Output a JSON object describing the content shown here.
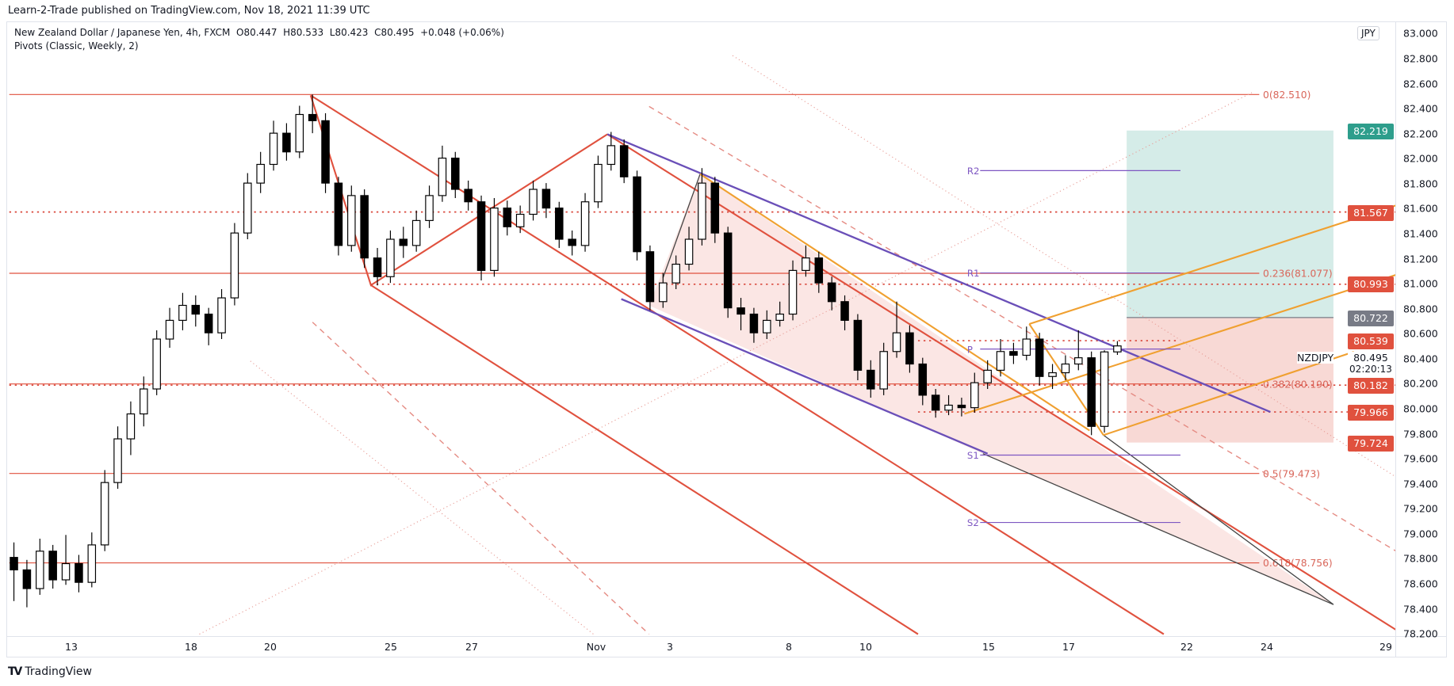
{
  "header": {
    "published": "Learn-2-Trade published on TradingView.com, Nov 18, 2021 11:39 UTC",
    "symbol_line": "New Zealand Dollar / Japanese Yen, 4h, FXCM",
    "open": "O80.447",
    "high": "H80.533",
    "low": "L80.423",
    "close": "C80.495",
    "change": "+0.048 (+0.06%)",
    "indicator": "Pivots (Classic, Weekly, 2)"
  },
  "price_scale": {
    "currency_badge": "JPY",
    "symbol": "NZDJPY",
    "current_price": "80.495",
    "countdown": "02:20:13"
  },
  "price_tags": [
    {
      "value": "82.219",
      "color": "#2e9e8c"
    },
    {
      "value": "81.567",
      "color": "#e0513e"
    },
    {
      "value": "80.993",
      "color": "#e0513e"
    },
    {
      "value": "80.722",
      "color": "#787b86"
    },
    {
      "value": "80.539",
      "color": "#e0513e"
    },
    {
      "value": "80.182",
      "color": "#e0513e"
    },
    {
      "value": "79.966",
      "color": "#e0513e"
    },
    {
      "value": "79.724",
      "color": "#e0513e"
    }
  ],
  "fib_levels": [
    {
      "label": "0(82.510)",
      "value": 82.51
    },
    {
      "label": "0.236(81.077)",
      "value": 81.077
    },
    {
      "label": "0.382(80.190)",
      "value": 80.19
    },
    {
      "label": "0.5(79.473)",
      "value": 79.473
    },
    {
      "label": "0.618(78.756)",
      "value": 78.756
    }
  ],
  "pivots": [
    {
      "label": "R2",
      "value": 81.9
    },
    {
      "label": "R1",
      "value": 81.08
    },
    {
      "label": "P",
      "value": 80.47
    },
    {
      "label": "S1",
      "value": 79.62
    },
    {
      "label": "S2",
      "value": 79.08
    }
  ],
  "branding": "TradingView",
  "colors": {
    "up": "#ffffff",
    "down": "#000000",
    "fib": "#e0513e",
    "pivot": "#7e57c2",
    "channel": "#e0513e",
    "wedge": "#f0a030",
    "target": "#2e9e8c",
    "stop": "#e0513e"
  },
  "chart_data": {
    "type": "candlestick",
    "title": "",
    "xlabel": "",
    "ylabel": "",
    "ylim": [
      78.2,
      83.0
    ],
    "grid": false,
    "y_ticks": [
      "83.000",
      "82.800",
      "82.600",
      "82.400",
      "82.200",
      "82.000",
      "81.800",
      "81.600",
      "81.400",
      "81.200",
      "81.000",
      "80.800",
      "80.600",
      "80.400",
      "80.200",
      "80.000",
      "79.800",
      "79.600",
      "79.400",
      "79.200",
      "79.000",
      "78.800",
      "78.600",
      "78.400",
      "78.200"
    ],
    "x_ticks": [
      "13",
      "18",
      "20",
      "25",
      "27",
      "Nov",
      "3",
      "8",
      "10",
      "15",
      "17",
      "22",
      "24",
      "29"
    ],
    "ohlc": [
      [
        78.8,
        78.92,
        78.45,
        78.7
      ],
      [
        78.7,
        78.78,
        78.4,
        78.55
      ],
      [
        78.55,
        78.95,
        78.5,
        78.85
      ],
      [
        78.85,
        78.9,
        78.55,
        78.62
      ],
      [
        78.62,
        78.98,
        78.58,
        78.75
      ],
      [
        78.75,
        78.82,
        78.52,
        78.6
      ],
      [
        78.6,
        79.0,
        78.56,
        78.9
      ],
      [
        78.9,
        79.5,
        78.85,
        79.4
      ],
      [
        79.4,
        79.85,
        79.35,
        79.75
      ],
      [
        79.75,
        80.05,
        79.62,
        79.95
      ],
      [
        79.95,
        80.25,
        79.85,
        80.15
      ],
      [
        80.15,
        80.62,
        80.1,
        80.55
      ],
      [
        80.55,
        80.8,
        80.48,
        80.7
      ],
      [
        80.7,
        80.92,
        80.62,
        80.82
      ],
      [
        80.82,
        80.9,
        80.65,
        80.75
      ],
      [
        80.75,
        80.8,
        80.5,
        80.6
      ],
      [
        80.6,
        80.95,
        80.55,
        80.88
      ],
      [
        80.88,
        81.48,
        80.82,
        81.4
      ],
      [
        81.4,
        81.88,
        81.35,
        81.8
      ],
      [
        81.8,
        82.05,
        81.72,
        81.95
      ],
      [
        81.95,
        82.3,
        81.9,
        82.2
      ],
      [
        82.2,
        82.28,
        81.98,
        82.05
      ],
      [
        82.05,
        82.42,
        82.0,
        82.35
      ],
      [
        82.35,
        82.51,
        82.2,
        82.3
      ],
      [
        82.3,
        82.36,
        81.72,
        81.8
      ],
      [
        81.8,
        81.85,
        81.22,
        81.3
      ],
      [
        81.3,
        81.78,
        81.25,
        81.7
      ],
      [
        81.7,
        81.75,
        81.12,
        81.2
      ],
      [
        81.2,
        81.28,
        80.98,
        81.05
      ],
      [
        81.05,
        81.42,
        81.0,
        81.35
      ],
      [
        81.35,
        81.45,
        81.2,
        81.3
      ],
      [
        81.3,
        81.58,
        81.25,
        81.5
      ],
      [
        81.5,
        81.78,
        81.44,
        81.7
      ],
      [
        81.7,
        82.1,
        81.65,
        82.0
      ],
      [
        82.0,
        82.05,
        81.68,
        81.75
      ],
      [
        81.75,
        81.82,
        81.58,
        81.65
      ],
      [
        81.65,
        81.7,
        81.02,
        81.1
      ],
      [
        81.1,
        81.68,
        81.05,
        81.6
      ],
      [
        81.6,
        81.66,
        81.38,
        81.45
      ],
      [
        81.45,
        81.62,
        81.4,
        81.55
      ],
      [
        81.55,
        81.82,
        81.5,
        81.75
      ],
      [
        81.75,
        81.8,
        81.52,
        81.6
      ],
      [
        81.6,
        81.65,
        81.28,
        81.35
      ],
      [
        81.35,
        81.42,
        81.22,
        81.3
      ],
      [
        81.3,
        81.72,
        81.25,
        81.65
      ],
      [
        81.65,
        82.02,
        81.6,
        81.95
      ],
      [
        81.95,
        82.21,
        81.9,
        82.1
      ],
      [
        82.1,
        82.15,
        81.8,
        81.85
      ],
      [
        81.85,
        81.9,
        81.18,
        81.25
      ],
      [
        81.25,
        81.3,
        80.78,
        80.85
      ],
      [
        80.85,
        81.08,
        80.8,
        81.0
      ],
      [
        81.0,
        81.22,
        80.95,
        81.15
      ],
      [
        81.15,
        81.45,
        81.1,
        81.35
      ],
      [
        81.35,
        81.92,
        81.3,
        81.8
      ],
      [
        81.8,
        81.85,
        81.32,
        81.4
      ],
      [
        81.4,
        81.45,
        80.72,
        80.8
      ],
      [
        80.8,
        80.88,
        80.62,
        80.75
      ],
      [
        80.75,
        80.8,
        80.52,
        80.6
      ],
      [
        80.6,
        80.78,
        80.55,
        80.7
      ],
      [
        80.7,
        80.85,
        80.65,
        80.75
      ],
      [
        80.75,
        81.18,
        80.7,
        81.1
      ],
      [
        81.1,
        81.3,
        81.05,
        81.2
      ],
      [
        81.2,
        81.25,
        80.92,
        81.0
      ],
      [
        81.0,
        81.05,
        80.78,
        80.85
      ],
      [
        80.85,
        80.9,
        80.62,
        80.7
      ],
      [
        80.7,
        80.75,
        80.22,
        80.3
      ],
      [
        80.3,
        80.38,
        80.08,
        80.15
      ],
      [
        80.15,
        80.52,
        80.1,
        80.45
      ],
      [
        80.45,
        80.85,
        80.4,
        80.6
      ],
      [
        80.6,
        80.66,
        80.28,
        80.35
      ],
      [
        80.35,
        80.4,
        80.02,
        80.1
      ],
      [
        80.1,
        80.15,
        79.92,
        79.98
      ],
      [
        79.98,
        80.1,
        79.94,
        80.02
      ],
      [
        80.02,
        80.08,
        79.93,
        80.0
      ],
      [
        80.0,
        80.28,
        79.96,
        80.2
      ],
      [
        80.2,
        80.38,
        80.15,
        80.3
      ],
      [
        80.3,
        80.55,
        80.25,
        80.45
      ],
      [
        80.45,
        80.52,
        80.35,
        80.42
      ],
      [
        80.42,
        80.65,
        80.38,
        80.55
      ],
      [
        80.55,
        80.6,
        80.18,
        80.25
      ],
      [
        80.25,
        80.35,
        80.15,
        80.28
      ],
      [
        80.28,
        80.42,
        80.22,
        80.35
      ],
      [
        80.35,
        80.62,
        80.3,
        80.4
      ],
      [
        80.4,
        80.45,
        79.78,
        79.85
      ],
      [
        79.85,
        80.46,
        79.8,
        80.447
      ],
      [
        80.447,
        80.533,
        80.423,
        80.495
      ]
    ]
  }
}
